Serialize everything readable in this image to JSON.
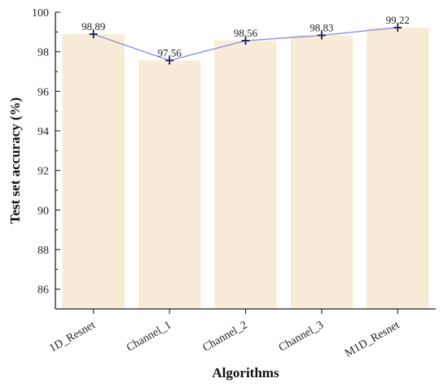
{
  "chart_data": {
    "type": "bar",
    "categories": [
      "1D_Resnet",
      "Channel_1",
      "Channel_2",
      "Channel_3",
      "M1D_Resnet"
    ],
    "values": [
      98.89,
      97.56,
      98.56,
      98.83,
      99.22
    ],
    "data_labels": [
      "98.89",
      "97.56",
      "98.56",
      "98.83",
      "99.22"
    ],
    "overlay_line": {
      "type": "line",
      "values": [
        98.89,
        97.56,
        98.56,
        98.83,
        99.22
      ],
      "marker": "plus"
    },
    "xlabel": "Algorithms",
    "ylabel": "Test set accuracy (%)",
    "ylim": [
      85,
      100
    ],
    "yticks": [
      86,
      88,
      90,
      92,
      94,
      96,
      98,
      100
    ],
    "grid": false,
    "legend": false
  },
  "colors": {
    "bar_fill": "#f8ecd8",
    "line": "#8896e0",
    "marker": "#1a1a4a",
    "axis": "#222222"
  }
}
